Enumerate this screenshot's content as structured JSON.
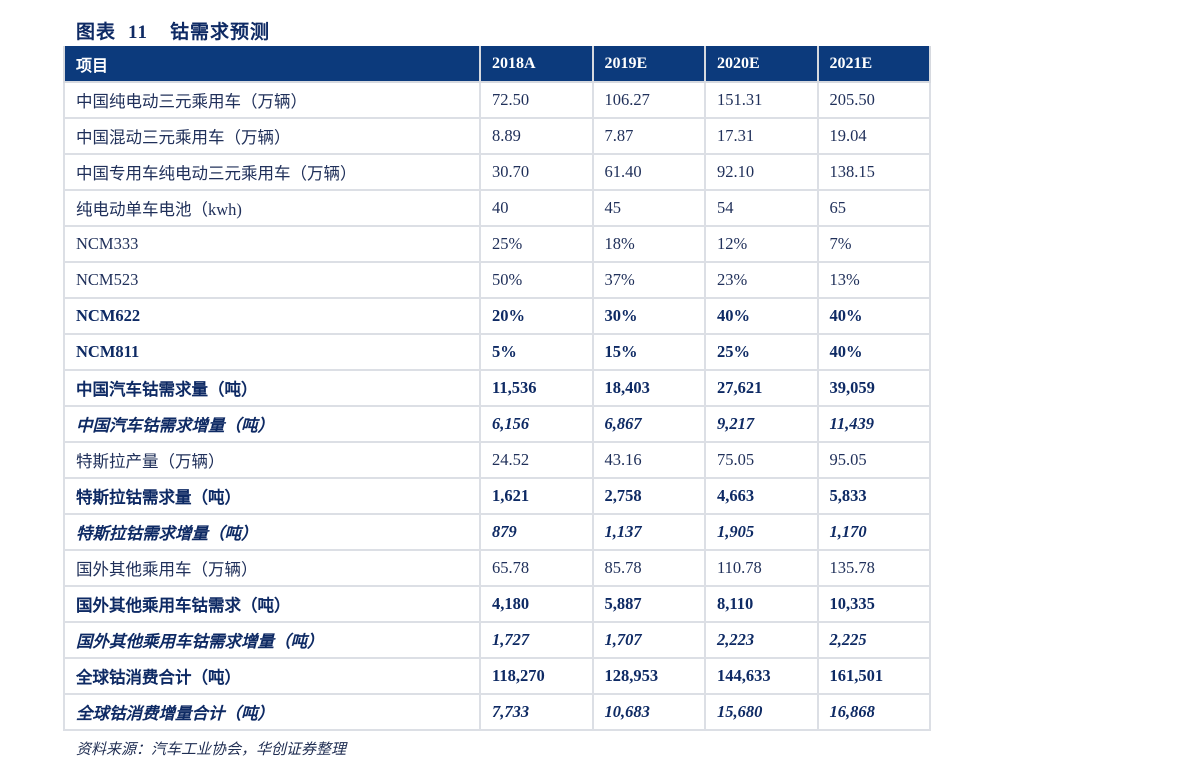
{
  "title": {
    "label": "图表",
    "number": "11",
    "text": "钴需求预测"
  },
  "table": {
    "headers": [
      "项目",
      "2018A",
      "2019E",
      "2020E",
      "2021E"
    ],
    "rows": [
      {
        "style": "normal",
        "cells": [
          "中国纯电动三元乘用车（万辆）",
          "72.50",
          "106.27",
          "151.31",
          "205.50"
        ]
      },
      {
        "style": "normal",
        "cells": [
          "中国混动三元乘用车（万辆）",
          "8.89",
          "7.87",
          "17.31",
          "19.04"
        ]
      },
      {
        "style": "normal",
        "cells": [
          "中国专用车纯电动三元乘用车（万辆）",
          "30.70",
          "61.40",
          "92.10",
          "138.15"
        ]
      },
      {
        "style": "normal",
        "cells": [
          "纯电动单车电池（kwh)",
          "40",
          "45",
          "54",
          "65"
        ]
      },
      {
        "style": "normal",
        "cells": [
          "NCM333",
          "25%",
          "18%",
          "12%",
          "7%"
        ]
      },
      {
        "style": "normal",
        "cells": [
          "NCM523",
          "50%",
          "37%",
          "23%",
          "13%"
        ]
      },
      {
        "style": "bold",
        "cells": [
          "NCM622",
          "20%",
          "30%",
          "40%",
          "40%"
        ]
      },
      {
        "style": "bold",
        "cells": [
          "NCM811",
          "5%",
          "15%",
          "25%",
          "40%"
        ]
      },
      {
        "style": "bold",
        "cells": [
          "中国汽车钴需求量（吨）",
          "11,536",
          "18,403",
          "27,621",
          "39,059"
        ]
      },
      {
        "style": "italic",
        "cells": [
          "中国汽车钴需求增量（吨）",
          "6,156",
          "6,867",
          "9,217",
          "11,439"
        ]
      },
      {
        "style": "normal",
        "cells": [
          "特斯拉产量（万辆）",
          "24.52",
          "43.16",
          "75.05",
          "95.05"
        ]
      },
      {
        "style": "bold",
        "cells": [
          "特斯拉钴需求量（吨）",
          "1,621",
          "2,758",
          "4,663",
          "5,833"
        ]
      },
      {
        "style": "italic",
        "cells": [
          "特斯拉钴需求增量（吨）",
          "879",
          "1,137",
          "1,905",
          "1,170"
        ]
      },
      {
        "style": "normal",
        "cells": [
          "国外其他乘用车（万辆）",
          "65.78",
          "85.78",
          "110.78",
          "135.78"
        ]
      },
      {
        "style": "bold",
        "cells": [
          "国外其他乘用车钴需求（吨）",
          "4,180",
          "5,887",
          "8,110",
          "10,335"
        ]
      },
      {
        "style": "italic",
        "cells": [
          "国外其他乘用车钴需求增量（吨）",
          "1,727",
          "1,707",
          "2,223",
          "2,225"
        ]
      },
      {
        "style": "bold",
        "cells": [
          "全球钴消费合计（吨）",
          "118,270",
          "128,953",
          "144,633",
          "161,501"
        ]
      },
      {
        "style": "italic",
        "cells": [
          "全球钴消费增量合计（吨）",
          "7,733",
          "10,683",
          "15,680",
          "16,868"
        ]
      }
    ]
  },
  "source": "资料来源：汽车工业协会，华创证券整理",
  "colors": {
    "header_bg": "#0c3a7c",
    "title": "#0e2a64",
    "border": "#dcdfe5"
  }
}
